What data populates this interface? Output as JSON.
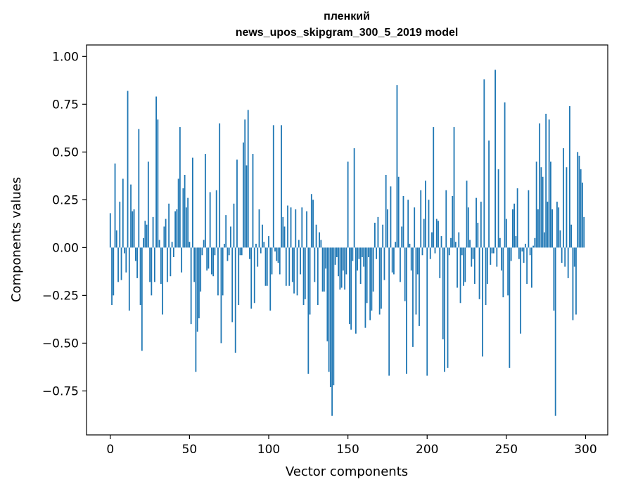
{
  "chart_data": {
    "type": "bar",
    "title": "пленкий",
    "subtitle": "news_upos_skipgram_300_5_2019 model",
    "xlabel": "Vector components",
    "ylabel": "Components values",
    "xlim": [
      -15,
      314
    ],
    "ylim": [
      -0.98,
      1.06
    ],
    "xticks": [
      0,
      50,
      100,
      150,
      200,
      250,
      300
    ],
    "xtick_labels": [
      "0",
      "50",
      "100",
      "150",
      "200",
      "250",
      "300"
    ],
    "yticks": [
      -0.75,
      -0.5,
      -0.25,
      0.0,
      0.25,
      0.5,
      0.75,
      1.0
    ],
    "ytick_labels": [
      "−0.75",
      "−0.50",
      "−0.25",
      "0.00",
      "0.25",
      "0.50",
      "0.75",
      "1.00"
    ],
    "grid": false,
    "bar_color": "#1f77b4",
    "x": "0..299",
    "values": [
      0.18,
      -0.3,
      -0.25,
      0.44,
      0.09,
      -0.18,
      0.24,
      -0.17,
      0.36,
      -0.03,
      -0.13,
      0.82,
      -0.33,
      0.33,
      0.19,
      0.2,
      -0.07,
      -0.16,
      0.62,
      -0.3,
      -0.54,
      0.05,
      0.14,
      0.12,
      0.45,
      -0.18,
      -0.25,
      0.16,
      -0.18,
      0.79,
      0.67,
      0.04,
      -0.19,
      -0.35,
      0.11,
      0.15,
      -0.18,
      0.23,
      -0.15,
      0.03,
      -0.05,
      0.19,
      0.2,
      0.36,
      0.63,
      -0.13,
      0.31,
      0.38,
      0.21,
      0.26,
      0.03,
      -0.4,
      0.47,
      -0.18,
      -0.65,
      -0.44,
      -0.37,
      -0.23,
      -0.04,
      0.04,
      0.49,
      -0.12,
      -0.11,
      0.29,
      -0.14,
      -0.15,
      -0.04,
      0.3,
      -0.25,
      0.65,
      -0.5,
      -0.25,
      0.02,
      0.17,
      -0.07,
      -0.04,
      0.11,
      -0.39,
      0.23,
      -0.55,
      0.46,
      -0.3,
      -0.04,
      -0.04,
      0.55,
      0.67,
      0.43,
      0.72,
      -0.06,
      -0.32,
      0.49,
      -0.29,
      0.02,
      -0.1,
      0.2,
      -0.03,
      0.12,
      0.03,
      -0.2,
      -0.2,
      0.06,
      -0.33,
      -0.14,
      0.64,
      -0.02,
      -0.07,
      -0.08,
      -0.14,
      0.64,
      0.16,
      0.11,
      -0.2,
      0.22,
      -0.2,
      0.21,
      -0.18,
      -0.24,
      0.2,
      -0.25,
      0.04,
      -0.14,
      0.21,
      -0.3,
      -0.27,
      0.19,
      -0.66,
      -0.35,
      0.28,
      0.25,
      -0.18,
      0.12,
      -0.3,
      0.08,
      0.04,
      -0.23,
      -0.23,
      -0.11,
      -0.49,
      -0.65,
      -0.73,
      -0.88,
      -0.72,
      -0.09,
      -0.05,
      -0.15,
      -0.22,
      -0.21,
      -0.12,
      -0.22,
      -0.14,
      0.45,
      -0.4,
      -0.43,
      -0.07,
      0.52,
      -0.45,
      -0.12,
      -0.06,
      -0.19,
      -0.05,
      -0.1,
      -0.42,
      -0.29,
      -0.05,
      -0.38,
      -0.33,
      -0.23,
      0.13,
      -0.06,
      0.16,
      -0.35,
      -0.32,
      0.12,
      -0.17,
      0.38,
      0.2,
      -0.67,
      0.32,
      -0.13,
      -0.14,
      0.03,
      0.85,
      0.37,
      -0.18,
      0.11,
      0.27,
      -0.28,
      -0.66,
      0.25,
      0.02,
      -0.12,
      -0.52,
      0.21,
      -0.35,
      -0.14,
      -0.41,
      0.3,
      -0.04,
      0.15,
      0.35,
      -0.67,
      0.25,
      -0.06,
      0.08,
      0.63,
      -0.03,
      0.15,
      0.14,
      -0.16,
      0.06,
      -0.48,
      -0.65,
      0.3,
      -0.63,
      -0.04,
      0.05,
      0.27,
      0.63,
      0.03,
      -0.21,
      0.08,
      -0.29,
      -0.04,
      -0.2,
      -0.18,
      0.35,
      0.21,
      0.04,
      -0.1,
      -0.06,
      -0.19,
      0.26,
      0.13,
      -0.27,
      0.24,
      -0.57,
      0.88,
      -0.3,
      -0.19,
      0.56,
      -0.09,
      -0.03,
      -0.03,
      0.93,
      -0.1,
      0.41,
      0.05,
      -0.12,
      -0.26,
      0.76,
      0.15,
      -0.25,
      -0.63,
      -0.07,
      0.2,
      0.23,
      0.06,
      0.31,
      -0.06,
      -0.45,
      -0.02,
      -0.08,
      0.02,
      -0.19,
      0.3,
      -0.04,
      -0.21,
      0.01,
      0.05,
      0.45,
      0.2,
      0.65,
      0.42,
      0.37,
      0.08,
      0.7,
      0.24,
      0.67,
      0.45,
      0.2,
      -0.33,
      -0.88,
      0.24,
      0.21,
      0.09,
      -0.08,
      0.52,
      -0.1,
      0.42,
      -0.16,
      0.74,
      0.12,
      -0.38,
      -0.1,
      -0.35,
      0.5,
      0.48,
      0.41,
      0.34,
      0.16
    ]
  }
}
